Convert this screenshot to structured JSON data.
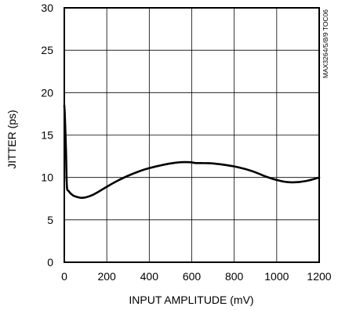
{
  "chart_data": {
    "type": "line",
    "title": "",
    "xlabel": "INPUT AMPLITUDE (mV)",
    "ylabel": "JITTER (ps)",
    "xlim": [
      0,
      1200
    ],
    "ylim": [
      0,
      30
    ],
    "xticks": [
      0,
      200,
      400,
      600,
      800,
      1000,
      1200
    ],
    "yticks": [
      0,
      5,
      10,
      15,
      20,
      25,
      30
    ],
    "grid": true,
    "legend": "none",
    "side_label": "MAX3264/5/8/9 TOC06",
    "line_color": "#000000",
    "series": [
      {
        "x": [
          0,
          3,
          8,
          12,
          20,
          40,
          60,
          80,
          100,
          130,
          160,
          200,
          250,
          300,
          350,
          400,
          450,
          500,
          550,
          590,
          620,
          650,
          700,
          750,
          800,
          850,
          900,
          950,
          1000,
          1050,
          1100,
          1150,
          1200
        ],
        "y": [
          18.5,
          17.0,
          13.0,
          9.0,
          8.4,
          7.9,
          7.7,
          7.6,
          7.65,
          7.9,
          8.3,
          8.9,
          9.6,
          10.2,
          10.7,
          11.1,
          11.4,
          11.65,
          11.8,
          11.8,
          11.7,
          11.7,
          11.65,
          11.5,
          11.3,
          11.0,
          10.6,
          10.1,
          9.7,
          9.45,
          9.45,
          9.65,
          10.0
        ]
      }
    ]
  }
}
